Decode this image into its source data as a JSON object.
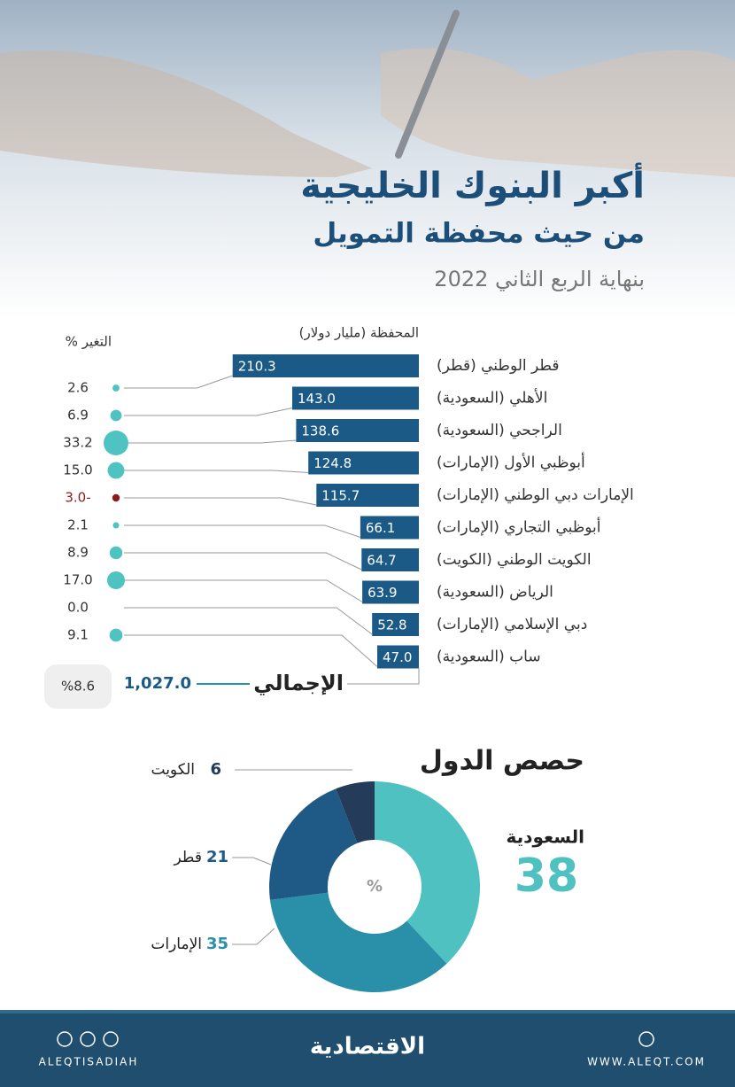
{
  "header": {
    "title": "أكبر البنوك الخليجية",
    "subtitle": "من حيث محفظة التمويل",
    "date": "بنهاية الربع الثاني 2022"
  },
  "chart_data": [
    {
      "type": "bar",
      "categories": [
        "قطر الوطني (قطر)",
        "الأهلي (السعودية)",
        "الراجحي (السعودية)",
        "أبوظبي الأول (الإمارات)",
        "الإمارات دبي الوطني (الإمارات)",
        "أبوظبي التجاري (الإمارات)",
        "الكويت الوطني (الكويت)",
        "الرياض (السعودية)",
        "دبي الإسلامي (الإمارات)",
        "ساب (السعودية)"
      ],
      "series": [
        {
          "name": "المحفظة (مليار دولار)",
          "color": "#1b5a87",
          "values": [
            210.3,
            143.0,
            138.6,
            124.8,
            115.7,
            66.1,
            64.7,
            63.9,
            52.8,
            47.0
          ],
          "value_labels": [
            "210.3",
            "143.0",
            "138.6",
            "124.8",
            "115.7",
            "66.1",
            "64.7",
            "63.9",
            "52.8",
            "47.0"
          ]
        },
        {
          "name": "التغير %",
          "color": "#4fc3c1",
          "negative_color": "#8b1a1a",
          "values": [
            2.6,
            6.9,
            33.2,
            15.0,
            -3.0,
            2.1,
            8.9,
            17.0,
            0.0,
            9.1
          ],
          "value_labels": [
            "2.6",
            "6.9",
            "33.2",
            "15.0",
            "3.0-",
            "2.1",
            "8.9",
            "17.0",
            "0.0",
            "9.1"
          ]
        }
      ],
      "total": {
        "label": "الإجمالي",
        "value": 1027.0,
        "value_label": "1,027.0",
        "change": 8.6,
        "change_label": "%8.6"
      }
    },
    {
      "type": "pie",
      "title": "حصص الدول",
      "center_label": "%",
      "categories": [
        "السعودية",
        "الإمارات",
        "قطر",
        "الكويت"
      ],
      "values": [
        38,
        35,
        21,
        6
      ],
      "colors": [
        "#4fc1c0",
        "#2a8fa8",
        "#1f5a86",
        "#253b5a"
      ]
    }
  ],
  "footer": {
    "handle": "ALEQTISADIAH",
    "brand": "الاقتصادية",
    "website": "WWW.ALEQT.COM"
  }
}
